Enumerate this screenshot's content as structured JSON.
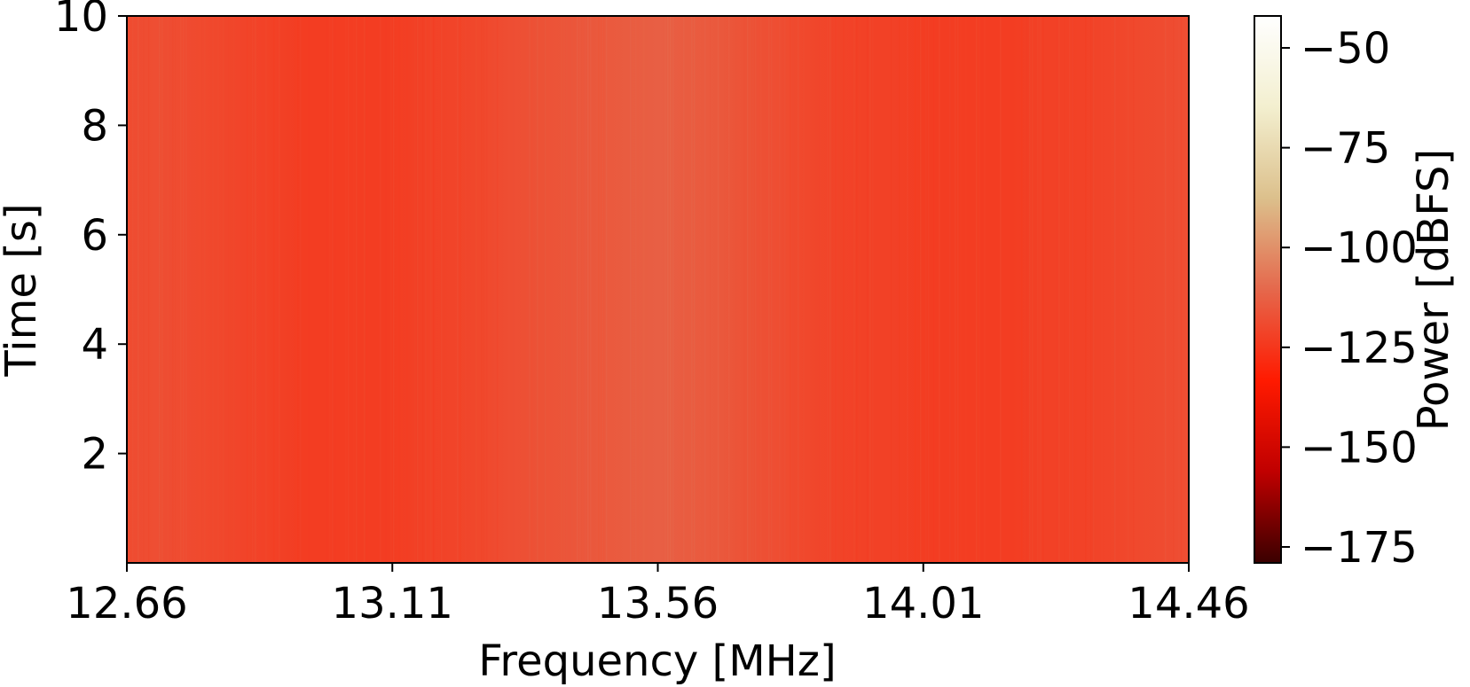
{
  "chart_data": {
    "type": "heatmap",
    "title": "",
    "xlabel": "Frequency [MHz]",
    "ylabel": "Time [s]",
    "xlim": [
      12.66,
      14.46
    ],
    "ylim": [
      0,
      10
    ],
    "x_ticks": [
      12.66,
      13.11,
      13.56,
      14.01,
      14.46
    ],
    "x_tick_labels": [
      "12.66",
      "13.11",
      "13.56",
      "14.01",
      "14.46"
    ],
    "y_ticks": [
      2,
      4,
      6,
      8,
      10
    ],
    "y_tick_labels": [
      "2",
      "4",
      "6",
      "8",
      "10"
    ],
    "grid": false,
    "colorbar": {
      "label": "Power [dBFS]",
      "range": [
        -179,
        -42
      ],
      "ticks": [
        -50,
        -75,
        -100,
        -125,
        -150,
        -175
      ],
      "tick_labels": [
        "−50",
        "−75",
        "−100",
        "−125",
        "−150",
        "−175"
      ],
      "colormap": "gist_heat_r-like",
      "colormap_stops": [
        "#3a0000",
        "#c00000",
        "#ff1a00",
        "#e5684c",
        "#dcc08c",
        "#f3efcf",
        "#ffffff"
      ]
    },
    "frequency_profile": {
      "frequencies_mhz": [
        12.66,
        12.71,
        12.76,
        12.81,
        12.86,
        12.91,
        12.96,
        13.01,
        13.06,
        13.11,
        13.16,
        13.21,
        13.26,
        13.31,
        13.36,
        13.41,
        13.46,
        13.51,
        13.56,
        13.61,
        13.66,
        13.71,
        13.76,
        13.81,
        13.86,
        13.91,
        13.96,
        14.01,
        14.06,
        14.11,
        14.16,
        14.21,
        14.26,
        14.31,
        14.36,
        14.41,
        14.46
      ],
      "power_dbfs": [
        -119,
        -118,
        -119,
        -120,
        -121,
        -122,
        -123,
        -123,
        -123,
        -123,
        -122,
        -121,
        -120,
        -118,
        -117,
        -116,
        -115,
        -114,
        -113,
        -114,
        -115,
        -117,
        -118,
        -120,
        -121,
        -122,
        -122,
        -123,
        -123,
        -123,
        -123,
        -122,
        -122,
        -121,
        -120,
        -119,
        -118
      ]
    },
    "time_range_s": [
      0,
      10
    ]
  }
}
